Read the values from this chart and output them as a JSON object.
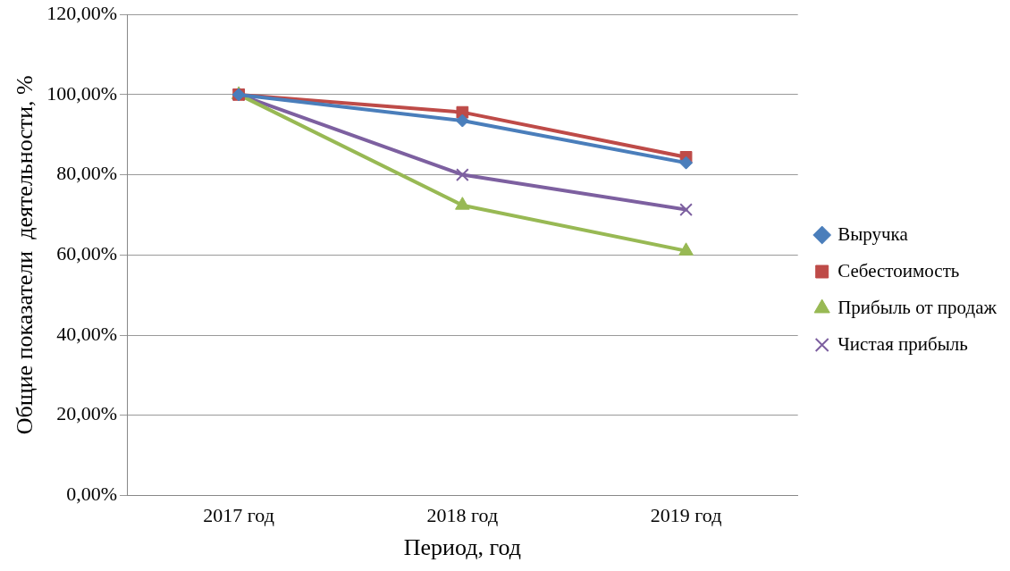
{
  "chart_data": {
    "type": "line",
    "xlabel": "Период, год",
    "ylabel": "Общие показатели  деятельности, %",
    "categories": [
      "2017 год",
      "2018 год",
      "2019 год"
    ],
    "series": [
      {
        "name": "Выручка",
        "color": "#4a7ebb",
        "marker": "diamond",
        "values": [
          100,
          93.5,
          83
        ]
      },
      {
        "name": "Себестоимость",
        "color": "#be4b48",
        "marker": "square",
        "values": [
          100,
          95.6,
          84.4
        ]
      },
      {
        "name": "Прибыль от продаж",
        "color": "#98b954",
        "marker": "triangle",
        "values": [
          100,
          72.4,
          61
        ]
      },
      {
        "name": "Чистая прибыль",
        "color": "#7d60a0",
        "marker": "cross",
        "values": [
          100,
          80,
          71.3
        ]
      }
    ],
    "ylim": [
      0,
      120
    ],
    "yticks": [
      {
        "value": 0,
        "label": "0,00%"
      },
      {
        "value": 20,
        "label": "20,00%"
      },
      {
        "value": 40,
        "label": "40,00%"
      },
      {
        "value": 60,
        "label": "60,00%"
      },
      {
        "value": 80,
        "label": "80,00%"
      },
      {
        "value": 100,
        "label": "100,00%"
      },
      {
        "value": 120,
        "label": "120,00%"
      }
    ],
    "grid": "y",
    "legend": "right",
    "line_style": "solid"
  }
}
